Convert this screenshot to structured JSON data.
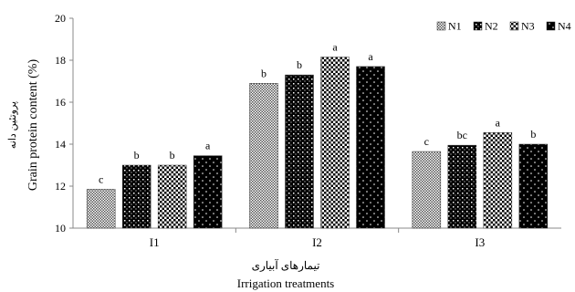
{
  "chart_data": {
    "type": "bar",
    "categories": [
      "I1",
      "I2",
      "I3"
    ],
    "series": [
      {
        "name": "N1",
        "values": [
          11.85,
          16.9,
          13.65
        ]
      },
      {
        "name": "N2",
        "values": [
          13.0,
          17.3,
          13.95
        ]
      },
      {
        "name": "N3",
        "values": [
          13.0,
          18.15,
          14.55
        ]
      },
      {
        "name": "N4",
        "values": [
          13.45,
          17.7,
          14.0
        ]
      }
    ],
    "letters": [
      [
        "c",
        "b",
        "b",
        "a"
      ],
      [
        "b",
        "b",
        "a",
        "a"
      ],
      [
        "c",
        "bc",
        "a",
        "b"
      ]
    ],
    "ylim": [
      10,
      20
    ],
    "yticks": [
      10,
      12,
      14,
      16,
      18,
      20
    ],
    "ylabel": "Grain  protein content (%)",
    "ylabel_fa": "پروتئین دانه",
    "xlabel_fa": "تیمارهای آبیاری",
    "xlabel": "Irrigation treatments",
    "legend_position": "top-right",
    "grid": false
  }
}
